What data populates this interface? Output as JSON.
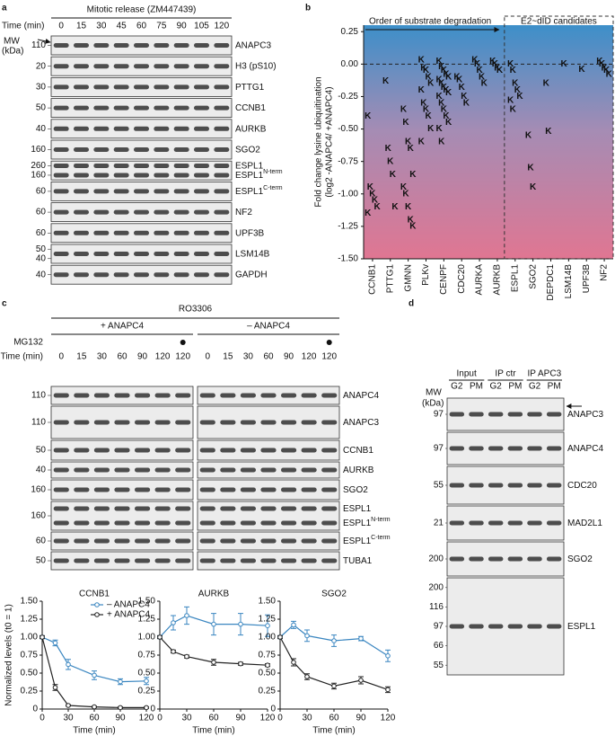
{
  "panel_a": {
    "label": "a",
    "title": "Mitotic release (ZM447439)",
    "time_label": "Time (min)",
    "times": [
      "0",
      "15",
      "30",
      "45",
      "60",
      "75",
      "90",
      "105",
      "120"
    ],
    "mw_label": [
      "MW",
      "(kDa)"
    ],
    "blots": [
      {
        "labels": [
          {
            "text": "ANAPC3"
          }
        ],
        "mw": [
          "110"
        ]
      },
      {
        "labels": [
          {
            "text": "H3 (pS10)"
          }
        ],
        "mw": [
          "20"
        ]
      },
      {
        "labels": [
          {
            "text": "PTTG1"
          }
        ],
        "mw": [
          "30"
        ]
      },
      {
        "labels": [
          {
            "text": "CCNB1"
          }
        ],
        "mw": [
          "50"
        ]
      },
      {
        "labels": [
          {
            "text": "AURKB"
          }
        ],
        "mw": [
          "40"
        ]
      },
      {
        "labels": [
          {
            "text": "SGO2"
          }
        ],
        "mw": [
          "160"
        ]
      },
      {
        "labels": [
          {
            "text": "ESPL1"
          },
          {
            "text": "ESPL1",
            "sup": "N-term"
          }
        ],
        "mw": [
          "260",
          "160"
        ]
      },
      {
        "labels": [
          {
            "text": "ESPL1",
            "sup": "C-term"
          }
        ],
        "mw": [
          "60"
        ]
      },
      {
        "labels": [
          {
            "text": "NF2"
          }
        ],
        "mw": [
          "60"
        ]
      },
      {
        "labels": [
          {
            "text": "UPF3B"
          }
        ],
        "mw": [
          "60"
        ]
      },
      {
        "labels": [
          {
            "text": "LSM14B"
          }
        ],
        "mw": [
          "50",
          "40"
        ]
      },
      {
        "labels": [
          {
            "text": "GAPDH"
          }
        ],
        "mw": [
          "40"
        ]
      }
    ]
  },
  "panel_b": {
    "label": "b"
  },
  "panel_c": {
    "label": "c",
    "title": "RO3306",
    "groups": [
      "+ ANAPC4",
      "– ANAPC4"
    ],
    "mg132_label": "MG132",
    "time_label": "Time (min)",
    "times": [
      "0",
      "15",
      "30",
      "60",
      "90",
      "120",
      "120"
    ],
    "blots": [
      {
        "labels": [
          {
            "text": "ANAPC4"
          }
        ],
        "mw": [
          "110"
        ]
      },
      {
        "labels": [
          {
            "text": "ANAPC3"
          }
        ],
        "mw": [
          "110"
        ]
      },
      {
        "labels": [
          {
            "text": "CCNB1"
          }
        ],
        "mw": [
          "50"
        ]
      },
      {
        "labels": [
          {
            "text": "AURKB"
          }
        ],
        "mw": [
          "40"
        ]
      },
      {
        "labels": [
          {
            "text": "SGO2"
          }
        ],
        "mw": [
          "160"
        ]
      },
      {
        "labels": [
          {
            "text": "ESPL1"
          },
          {
            "text": "ESPL1",
            "sup": "N-term"
          }
        ],
        "mw": [
          "160"
        ]
      },
      {
        "labels": [
          {
            "text": "ESPL1",
            "sup": "C-term"
          }
        ],
        "mw": [
          "60"
        ]
      },
      {
        "labels": [
          {
            "text": "TUBA1"
          }
        ],
        "mw": [
          "50"
        ]
      }
    ]
  },
  "panel_d": {
    "label": "d",
    "groups": [
      "Input",
      "IP ctr",
      "IP APC3"
    ],
    "lanes": [
      "G2",
      "PM",
      "G2",
      "PM",
      "G2",
      "PM"
    ],
    "mw_label": [
      "MW",
      "(kDa)"
    ],
    "blots": [
      {
        "labels": [
          {
            "text": "ANAPC3"
          }
        ],
        "mw": [
          "97"
        ]
      },
      {
        "labels": [
          {
            "text": "ANAPC4"
          }
        ],
        "mw": [
          "97"
        ]
      },
      {
        "labels": [
          {
            "text": "CDC20"
          }
        ],
        "mw": [
          "55"
        ]
      },
      {
        "labels": [
          {
            "text": "MAD2L1"
          }
        ],
        "mw": [
          "21"
        ]
      },
      {
        "labels": [
          {
            "text": "SGO2"
          }
        ],
        "mw": [
          "200"
        ]
      },
      {
        "labels": [
          {
            "text": "ESPL1"
          }
        ],
        "mw": [
          "200",
          "116",
          "97",
          "66",
          "55"
        ]
      }
    ]
  },
  "chart_data": [
    {
      "type": "scatter",
      "ylabel": [
        "Fold change lysine ubiquitination",
        "(log2 -ANAPC4/ +ANAPC4)"
      ],
      "annotations": [
        "Order of substrate degradation",
        "E2~dID candidates"
      ],
      "marker": "K",
      "categories": [
        "CCNB1",
        "PTTG1",
        "GMNN",
        "PLKv",
        "CENPF",
        "CDC20",
        "AURKA",
        "AURKB",
        "ESPL1",
        "SGO2",
        "DEPDC1",
        "LSM14B",
        "UPF3B",
        "NF2"
      ],
      "values": [
        [
          -0.4,
          -0.95,
          -1.0,
          -1.05,
          -1.1,
          -1.15
        ],
        [
          -0.13,
          -0.65,
          -0.75,
          -0.85,
          -1.1
        ],
        [
          -0.35,
          -0.45,
          -0.6,
          -0.65,
          -0.85,
          -0.95,
          -1.0,
          -1.1,
          -1.2,
          -1.25
        ],
        [
          0.03,
          -0.03,
          -0.05,
          -0.1,
          -0.15,
          -0.2,
          -0.3,
          -0.35,
          -0.4,
          -0.5,
          -0.6
        ],
        [
          0.02,
          -0.02,
          -0.05,
          -0.08,
          -0.1,
          -0.12,
          -0.15,
          -0.18,
          -0.2,
          -0.22,
          -0.25,
          -0.3,
          -0.35,
          -0.4,
          -0.45,
          -0.5,
          -0.6
        ],
        [
          -0.1,
          -0.12,
          -0.18,
          -0.25,
          -0.3
        ],
        [
          0.03,
          0.0,
          -0.05,
          -0.1,
          -0.15
        ],
        [
          0.02,
          0.0,
          -0.03,
          -0.05
        ],
        [
          0.0,
          -0.05,
          -0.15,
          -0.2,
          -0.25,
          -0.28,
          -0.35
        ],
        [
          -0.55,
          -0.8,
          -0.95
        ],
        [
          -0.15,
          -0.52
        ],
        [
          0.0
        ],
        [
          -0.04
        ],
        [
          0.02,
          0.0,
          -0.03,
          -0.05,
          -0.08
        ]
      ],
      "ylim": [
        -1.5,
        0.3
      ],
      "yticks": [
        0.25,
        {
          "value": 0,
          "label": "0.00"
        },
        -0.25,
        {
          "value": -0.5,
          "label": "-0.50"
        },
        -0.75,
        {
          "value": -1,
          "label": "-1.00"
        },
        -1.25,
        {
          "value": -1.5,
          "label": "-1.50"
        }
      ]
    },
    {
      "type": "line",
      "title": "CCNB1",
      "xlabel": "Time (min)",
      "ylabel": "Normalized levels (t0 = 1)",
      "legend": "upper right",
      "x": [
        0,
        15,
        30,
        60,
        90,
        120
      ],
      "xlim": [
        0,
        120
      ],
      "xticks": [
        0,
        30,
        60,
        90,
        120
      ],
      "ylim": [
        0,
        1.5
      ],
      "yticks": [
        0,
        0.25,
        {
          "value": 0.5,
          "label": "0.50"
        },
        0.75,
        {
          "value": 1,
          "label": "1.00"
        },
        1.25,
        {
          "value": 1.5,
          "label": "1.50"
        }
      ],
      "series": [
        {
          "name": "– ANAPC4",
          "color": "#3a86c0",
          "values": [
            1.0,
            0.92,
            0.62,
            0.47,
            0.38,
            0.39
          ],
          "errors": [
            0.02,
            0.04,
            0.07,
            0.06,
            0.04,
            0.05
          ]
        },
        {
          "name": "+ ANAPC4",
          "color": "#222222",
          "values": [
            1.0,
            0.3,
            0.05,
            0.03,
            0.02,
            0.02
          ],
          "errors": [
            0.02,
            0.04,
            0.01,
            0.01,
            0.01,
            0.01
          ]
        }
      ]
    },
    {
      "type": "line",
      "title": "AURKB",
      "xlabel": "Time (min)",
      "x": [
        0,
        15,
        30,
        60,
        90,
        120
      ],
      "xlim": [
        0,
        120
      ],
      "xticks": [
        0,
        30,
        60,
        90,
        120
      ],
      "ylim": [
        0,
        1.5
      ],
      "yticks": [
        0,
        0.25,
        {
          "value": 0.5,
          "label": "0.50"
        },
        0.75,
        {
          "value": 1,
          "label": "1.00"
        },
        1.25,
        {
          "value": 1.5,
          "label": "1.50"
        }
      ],
      "series": [
        {
          "color": "#3a86c0",
          "values": [
            1.0,
            1.2,
            1.3,
            1.18,
            1.18,
            1.16
          ],
          "errors": [
            0.02,
            0.1,
            0.12,
            0.15,
            0.15,
            0.15
          ]
        },
        {
          "color": "#222222",
          "values": [
            1.0,
            0.8,
            0.73,
            0.65,
            0.63,
            0.61
          ],
          "errors": [
            0.02,
            0.02,
            0.02,
            0.04,
            0.02,
            0.02
          ]
        }
      ]
    },
    {
      "type": "line",
      "title": "SGO2",
      "xlabel": "Time (min)",
      "x": [
        0,
        15,
        30,
        60,
        90,
        120
      ],
      "xlim": [
        0,
        120
      ],
      "xticks": [
        0,
        30,
        60,
        90,
        120
      ],
      "ylim": [
        0,
        1.5
      ],
      "yticks": [
        0,
        0.25,
        {
          "value": 0.5,
          "label": "0.50"
        },
        0.75,
        {
          "value": 1,
          "label": "1.00"
        },
        1.25,
        {
          "value": 1.5,
          "label": "1.50"
        }
      ],
      "series": [
        {
          "color": "#3a86c0",
          "values": [
            1.0,
            1.17,
            1.02,
            0.95,
            0.98,
            0.74
          ],
          "errors": [
            0.02,
            0.05,
            0.08,
            0.08,
            0.03,
            0.08
          ]
        },
        {
          "color": "#222222",
          "values": [
            1.0,
            0.65,
            0.45,
            0.32,
            0.4,
            0.27
          ],
          "errors": [
            0.02,
            0.05,
            0.04,
            0.04,
            0.05,
            0.04
          ]
        }
      ]
    }
  ]
}
